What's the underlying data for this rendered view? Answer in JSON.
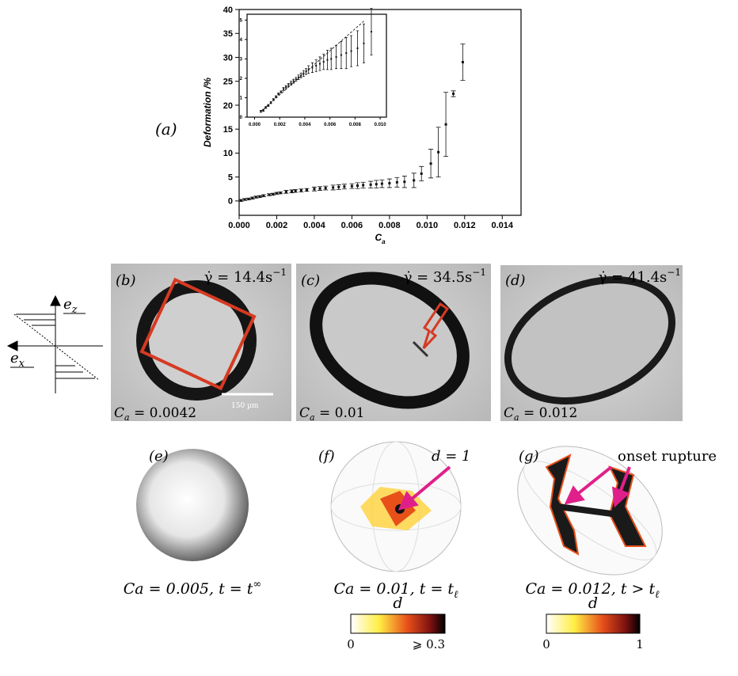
{
  "chart_data": [
    {
      "type": "scatter",
      "ylabel": "Deformation /%",
      "xlabel": "C",
      "xlabel_sub": "a",
      "x": [
        0.0001,
        0.0003,
        0.0005,
        0.0007,
        0.0009,
        0.0011,
        0.0013,
        0.0016,
        0.0018,
        0.002,
        0.0022,
        0.0025,
        0.0028,
        0.003,
        0.0033,
        0.0036,
        0.004,
        0.0043,
        0.0046,
        0.005,
        0.0053,
        0.0056,
        0.006,
        0.0063,
        0.0066,
        0.007,
        0.0073,
        0.0076,
        0.008,
        0.0084,
        0.0088,
        0.0093,
        0.0097,
        0.0102,
        0.0106,
        0.011,
        0.0114,
        0.0119
      ],
      "values": [
        0.1,
        0.3,
        0.4,
        0.6,
        0.8,
        0.9,
        1.1,
        1.3,
        1.4,
        1.6,
        1.7,
        1.9,
        2.0,
        2.1,
        2.2,
        2.3,
        2.5,
        2.6,
        2.7,
        2.8,
        2.9,
        3.0,
        3.1,
        3.2,
        3.3,
        3.4,
        3.5,
        3.6,
        3.7,
        3.9,
        4.0,
        4.3,
        5.7,
        7.8,
        10.2,
        16.0,
        22.4,
        29.0
      ],
      "errors": [
        0.2,
        0.2,
        0.2,
        0.2,
        0.2,
        0.2,
        0.2,
        0.2,
        0.2,
        0.2,
        0.2,
        0.3,
        0.3,
        0.3,
        0.3,
        0.3,
        0.4,
        0.4,
        0.4,
        0.5,
        0.5,
        0.5,
        0.5,
        0.6,
        0.6,
        0.7,
        0.8,
        0.8,
        0.9,
        1.0,
        1.2,
        1.5,
        1.5,
        3.0,
        5.2,
        6.7,
        0.6,
        3.8
      ],
      "color": "#111111",
      "xlim": [
        0,
        0.015
      ],
      "ylim": [
        -3,
        40
      ],
      "xticks": [
        {
          "value": 0,
          "label": "0.000"
        },
        {
          "value": 0.002,
          "label": "0.002"
        },
        {
          "value": 0.004,
          "label": "0.004"
        },
        {
          "value": 0.006,
          "label": "0.006"
        },
        {
          "value": 0.008,
          "label": "0.008"
        },
        {
          "value": 0.01,
          "label": "0.010"
        },
        {
          "value": 0.012,
          "label": "0.012"
        },
        {
          "value": 0.014,
          "label": "0.014"
        }
      ],
      "yticks": [
        0,
        5,
        10,
        15,
        20,
        25,
        30,
        35,
        40
      ]
    },
    {
      "type": "scatter",
      "x": [
        0.0005,
        0.0007,
        0.0009,
        0.0011,
        0.0013,
        0.0015,
        0.0017,
        0.0019,
        0.0021,
        0.0023,
        0.0025,
        0.0027,
        0.0029,
        0.0031,
        0.0033,
        0.0035,
        0.0037,
        0.0039,
        0.0041,
        0.0043,
        0.0046,
        0.0049,
        0.0052,
        0.0055,
        0.0058,
        0.0061,
        0.0065,
        0.0069,
        0.0073,
        0.0077,
        0.0082,
        0.0087,
        0.0093
      ],
      "values": [
        0.3,
        0.35,
        0.5,
        0.6,
        0.75,
        0.9,
        1.05,
        1.2,
        1.3,
        1.45,
        1.55,
        1.65,
        1.75,
        1.85,
        1.95,
        2.05,
        2.15,
        2.25,
        2.35,
        2.45,
        2.55,
        2.65,
        2.75,
        2.85,
        2.95,
        3.0,
        3.1,
        3.2,
        3.3,
        3.4,
        3.55,
        3.8,
        4.4
      ],
      "errors": [
        0.05,
        0.05,
        0.05,
        0.05,
        0.05,
        0.05,
        0.05,
        0.05,
        0.05,
        0.08,
        0.08,
        0.08,
        0.1,
        0.1,
        0.1,
        0.12,
        0.12,
        0.15,
        0.15,
        0.2,
        0.25,
        0.3,
        0.35,
        0.4,
        0.5,
        0.55,
        0.6,
        0.7,
        0.8,
        0.8,
        0.9,
        1.0,
        1.2
      ],
      "color": "#111111",
      "reference_line": {
        "x": [
          0.0005,
          0.0088
        ],
        "y": [
          0.3,
          5
        ]
      },
      "xlim": [
        -0.0006,
        0.0105
      ],
      "ylim": [
        0,
        5.3
      ],
      "xticks": [
        {
          "value": 0,
          "label": "0.000"
        },
        {
          "value": 0.002,
          "label": "0.002"
        },
        {
          "value": 0.004,
          "label": "0.004"
        },
        {
          "value": 0.006,
          "label": "0.006"
        },
        {
          "value": 0.008,
          "label": "0.008"
        },
        {
          "value": 0.01,
          "label": "0.010"
        }
      ],
      "yticks": [
        0,
        1,
        2,
        3,
        4,
        5
      ]
    }
  ],
  "panels": {
    "a": "(a)",
    "b": "(b)",
    "c": "(c)",
    "d": "(d)",
    "e": "(e)",
    "f": "(f)",
    "g": "(g)"
  },
  "photos": [
    {
      "shear": "γ̇ = 14.4s",
      "shear_sup": "−1",
      "ca": "C",
      "ca_sub": "a",
      "ca_value": " = 0.0042"
    },
    {
      "shear": "γ̇ = 34.5s",
      "shear_sup": "−1",
      "ca": "C",
      "ca_sub": "a",
      "ca_value": " = 0.01"
    },
    {
      "shear": "γ̇ = 41.4s",
      "shear_sup": "−1",
      "ca": "C",
      "ca_sub": "a",
      "ca_value": " = 0.012"
    }
  ],
  "scale_bar": "150 µm",
  "axes_sketch": {
    "ez": "e",
    "ez_sub": "z",
    "ex": "e",
    "ex_sub": "x"
  },
  "simulations": [
    {
      "caption": "Ca = 0.005, t = t",
      "caption_sup": "∞"
    },
    {
      "caption": "Ca = 0.01, t = t",
      "caption_sub": "ℓ",
      "annotation": "d = 1"
    },
    {
      "caption": "Ca = 0.012, t > t",
      "caption_sub": "ℓ",
      "annotation": "onset rupture"
    }
  ],
  "colorbars": [
    {
      "label": "d",
      "min": "0",
      "max": "⩾ 0.3"
    },
    {
      "label": "d",
      "min": "0",
      "max": "1"
    }
  ]
}
